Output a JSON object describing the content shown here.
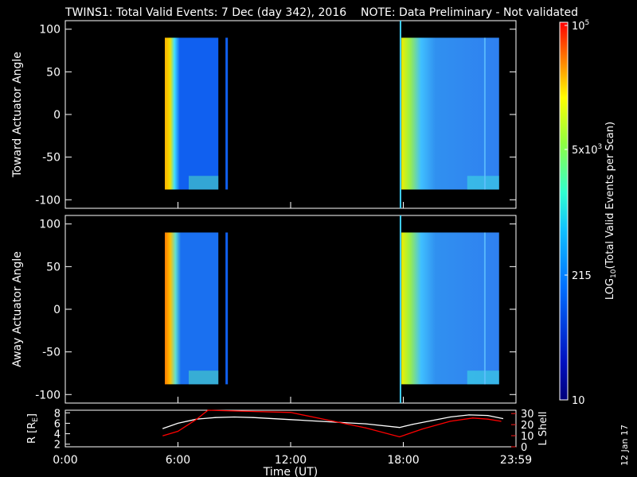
{
  "header": {
    "title": "TWINS1: Total Valid Events:  7 Dec (day 342), 2016",
    "note": "NOTE: Data Preliminary - Not validated"
  },
  "panels": [
    {
      "ylabel": "Toward Actuator Angle",
      "yticks": [
        "100",
        "50",
        "0",
        "-50",
        "-100"
      ]
    },
    {
      "ylabel": "Away Actuator Angle",
      "yticks": [
        "100",
        "50",
        "0",
        "-50",
        "-100"
      ]
    }
  ],
  "bottom_panel": {
    "ylabel_left": "R [R",
    "ylabel_left_sub": "E",
    "ylabel_left_end": "]",
    "yticks_left": [
      "8",
      "6",
      "4",
      "2"
    ],
    "ylabel_right": "L Shell",
    "yticks_right": [
      "30",
      "20",
      "10",
      "0"
    ],
    "xticks": [
      "0:00",
      "6:00",
      "12:00",
      "18:00",
      "23:59"
    ],
    "xlabel": "Time (UT)"
  },
  "colorbar": {
    "label": "LOG",
    "label_sub": "10",
    "label_rest": "(Total Valid Events per Scan)",
    "ticks": [
      {
        "label": "10",
        "sup": "5"
      },
      {
        "label": "5x10",
        "sup": "3"
      },
      {
        "label": "215",
        "sup": ""
      },
      {
        "label": "10",
        "sup": ""
      }
    ]
  },
  "date_stamp": "12 Jan 17",
  "chart_data": [
    {
      "type": "heatmap",
      "panel": "Toward Actuator Angle",
      "x_range_hours": [
        0,
        24
      ],
      "ylim": [
        -110,
        110
      ],
      "y_data_range": [
        -88,
        90
      ],
      "data_intervals_ut": [
        [
          5.3,
          8.7
        ],
        [
          17.9,
          23.1
        ]
      ],
      "colorscale": "log10 counts, 10 to 1e5",
      "vertical_marker_ut": 17.85
    },
    {
      "type": "heatmap",
      "panel": "Away Actuator Angle",
      "x_range_hours": [
        0,
        24
      ],
      "ylim": [
        -110,
        110
      ],
      "y_data_range": [
        -88,
        90
      ],
      "data_intervals_ut": [
        [
          5.3,
          8.7
        ],
        [
          17.9,
          23.1
        ]
      ],
      "colorscale": "log10 counts, 10 to 1e5",
      "vertical_marker_ut": 17.85
    },
    {
      "type": "line",
      "panel": "R and L Shell",
      "series": [
        {
          "name": "R [RE]",
          "color": "#ffffff",
          "axis": "left",
          "x": [
            5.2,
            6.0,
            7.0,
            8.0,
            9.0,
            10.0,
            12.0,
            14.0,
            16.0,
            17.8,
            18.5,
            19.5,
            20.5,
            21.5,
            22.5,
            23.3
          ],
          "y": [
            5.0,
            6.0,
            6.8,
            7.1,
            7.2,
            7.1,
            6.7,
            6.3,
            5.9,
            5.2,
            5.8,
            6.5,
            7.2,
            7.6,
            7.5,
            6.9
          ]
        },
        {
          "name": "L Shell",
          "color": "#ff0000",
          "axis": "right",
          "x": [
            5.2,
            6.0,
            7.0,
            7.6,
            12.0,
            14.0,
            16.0,
            17.8,
            19.0,
            20.5,
            21.7,
            22.5,
            23.2
          ],
          "y": [
            10,
            14,
            25,
            33,
            31,
            24,
            17,
            9,
            16,
            23,
            26,
            25,
            23
          ]
        }
      ],
      "ylim_left": [
        1.5,
        8.5
      ],
      "ylim_right": [
        0,
        33
      ],
      "xlim": [
        0,
        24
      ]
    }
  ]
}
